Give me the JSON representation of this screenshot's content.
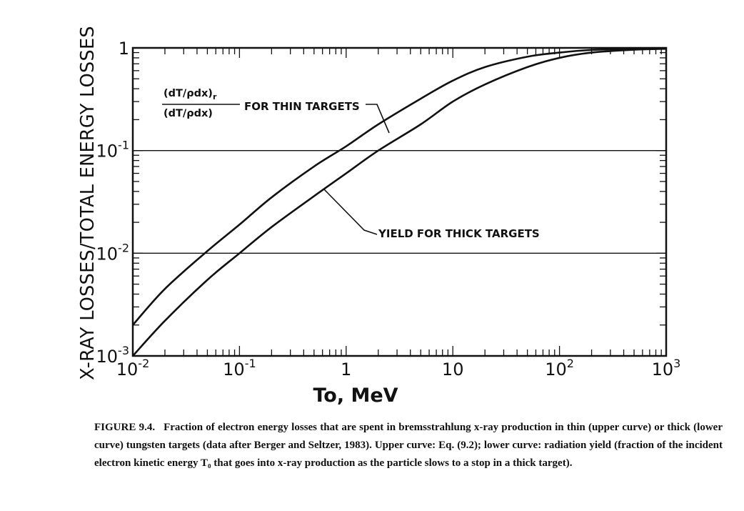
{
  "chart_data": {
    "type": "line",
    "xlabel": "To, MeV",
    "ylabel": "X-RAY LOSSES/TOTAL ENERGY LOSSES",
    "x_scale": "log",
    "y_scale": "log",
    "xlim": [
      0.01,
      1000
    ],
    "ylim": [
      0.001,
      1
    ],
    "grid": "major y only",
    "x_ticks": [
      {
        "base": "10",
        "exp": "-2"
      },
      {
        "base": "10",
        "exp": "-1"
      },
      {
        "base": "1",
        "exp": ""
      },
      {
        "base": "10",
        "exp": ""
      },
      {
        "base": "10",
        "exp": "2"
      },
      {
        "base": "10",
        "exp": "3"
      }
    ],
    "y_ticks": [
      {
        "base": "10",
        "exp": "-3"
      },
      {
        "base": "10",
        "exp": "-2"
      },
      {
        "base": "10",
        "exp": "-1"
      },
      {
        "base": "1",
        "exp": ""
      }
    ],
    "series": [
      {
        "name": "FOR THIN TARGETS",
        "x": [
          0.01,
          0.02,
          0.05,
          0.1,
          0.2,
          0.5,
          1,
          2,
          5,
          10,
          20,
          50,
          100,
          200,
          500,
          1000
        ],
        "y": [
          0.002,
          0.0045,
          0.0105,
          0.019,
          0.035,
          0.07,
          0.11,
          0.18,
          0.32,
          0.48,
          0.65,
          0.82,
          0.9,
          0.955,
          0.98,
          0.99
        ]
      },
      {
        "name": "YIELD FOR THICK TARGETS",
        "x": [
          0.01,
          0.02,
          0.05,
          0.1,
          0.2,
          0.5,
          1,
          2,
          5,
          10,
          20,
          50,
          100,
          200,
          500,
          1000
        ],
        "y": [
          0.001,
          0.0022,
          0.0055,
          0.01,
          0.018,
          0.036,
          0.06,
          0.1,
          0.18,
          0.3,
          0.44,
          0.65,
          0.8,
          0.9,
          0.96,
          0.98
        ]
      }
    ],
    "annotations": {
      "thin_fraction_numerator": "(dT/ρdx)",
      "thin_fraction_numerator_sub": "r",
      "thin_fraction_denominator": "(dT/ρdx)",
      "thin_label": "FOR THIN TARGETS",
      "thick_label": "YIELD FOR THICK TARGETS"
    }
  },
  "caption": {
    "figure_number": "FIGURE 9.4.",
    "text": "Fraction of electron energy losses that are spent in bremsstrahlung x-ray production in thin (upper curve) or thick (lower curve) tungsten targets (data after Berger and Seltzer, 1983). Upper curve: Eq. (9.2); lower curve: radiation yield (fraction of the incident electron kinetic energy T₀ that goes into x-ray production as the particle slows to a stop in a thick target)."
  }
}
